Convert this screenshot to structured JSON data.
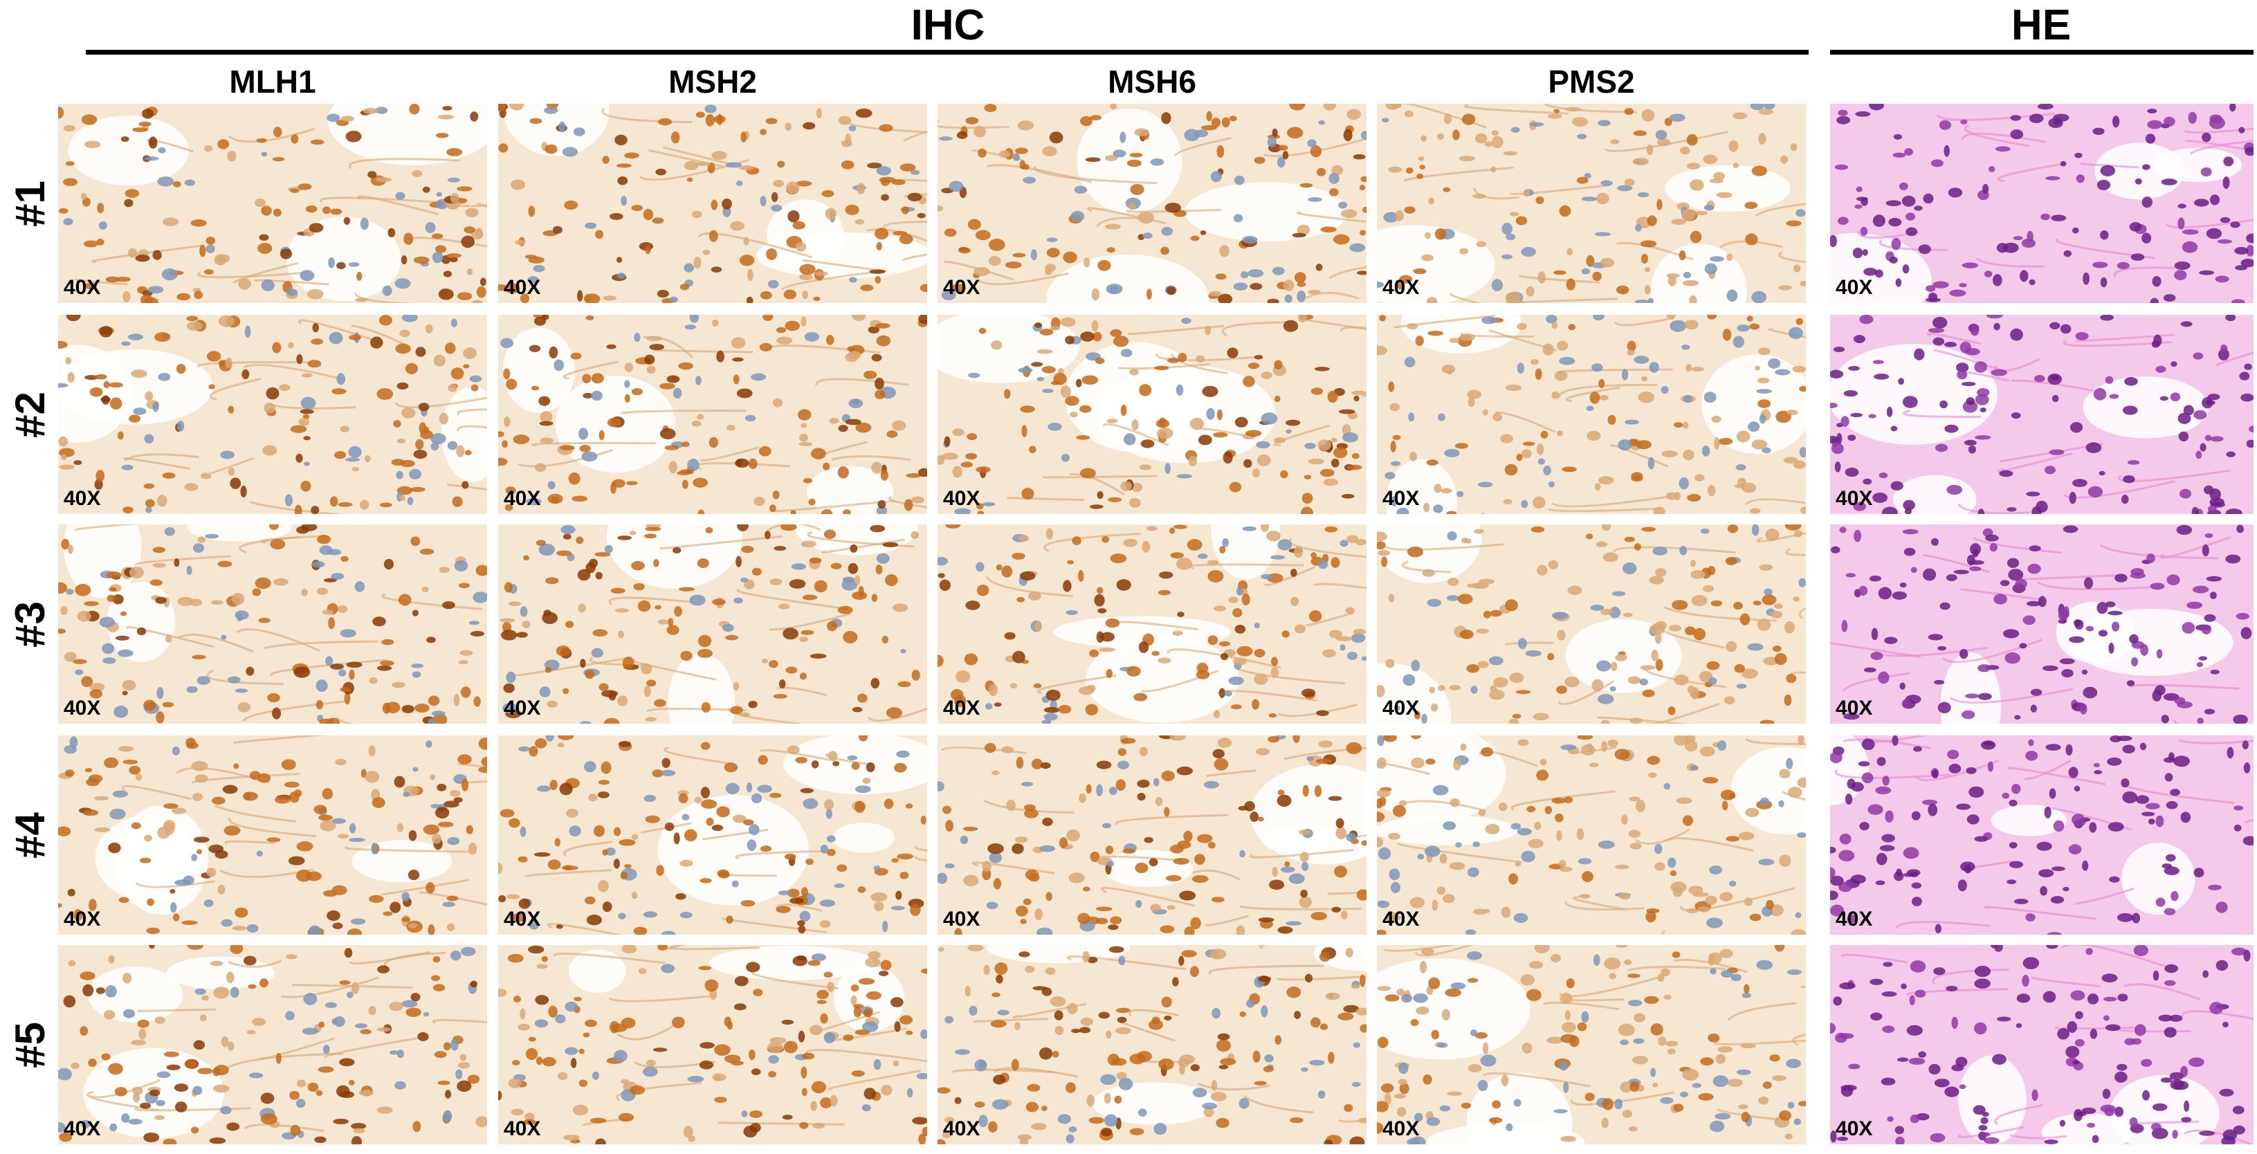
{
  "groups": [
    {
      "key": "ihc",
      "title": "IHC"
    },
    {
      "key": "he",
      "title": "HE"
    }
  ],
  "columns": [
    {
      "key": "mlh1",
      "label": "MLH1",
      "stain": "dab"
    },
    {
      "key": "msh2",
      "label": "MSH2",
      "stain": "dab"
    },
    {
      "key": "msh6",
      "label": "MSH6",
      "stain": "dab"
    },
    {
      "key": "pms2",
      "label": "PMS2",
      "stain": "dab"
    },
    {
      "key": "he",
      "label": "",
      "stain": "he"
    }
  ],
  "rows": [
    {
      "key": "case1",
      "label": "#1"
    },
    {
      "key": "case2",
      "label": "#2"
    },
    {
      "key": "case3",
      "label": "#3"
    },
    {
      "key": "case4",
      "label": "#4"
    },
    {
      "key": "case5",
      "label": "#5"
    }
  ],
  "magnification": "40X",
  "colors": {
    "dab_strong": "#8a3a05",
    "dab_medium": "#c46a1a",
    "dab_weak": "#d9a877",
    "counterstain": "#7f96b8",
    "dab_background": "#f6e7d3",
    "he_nuclei": "#6b1f86",
    "he_eosin": "#e889cf",
    "he_background": "#f4c9ea"
  }
}
